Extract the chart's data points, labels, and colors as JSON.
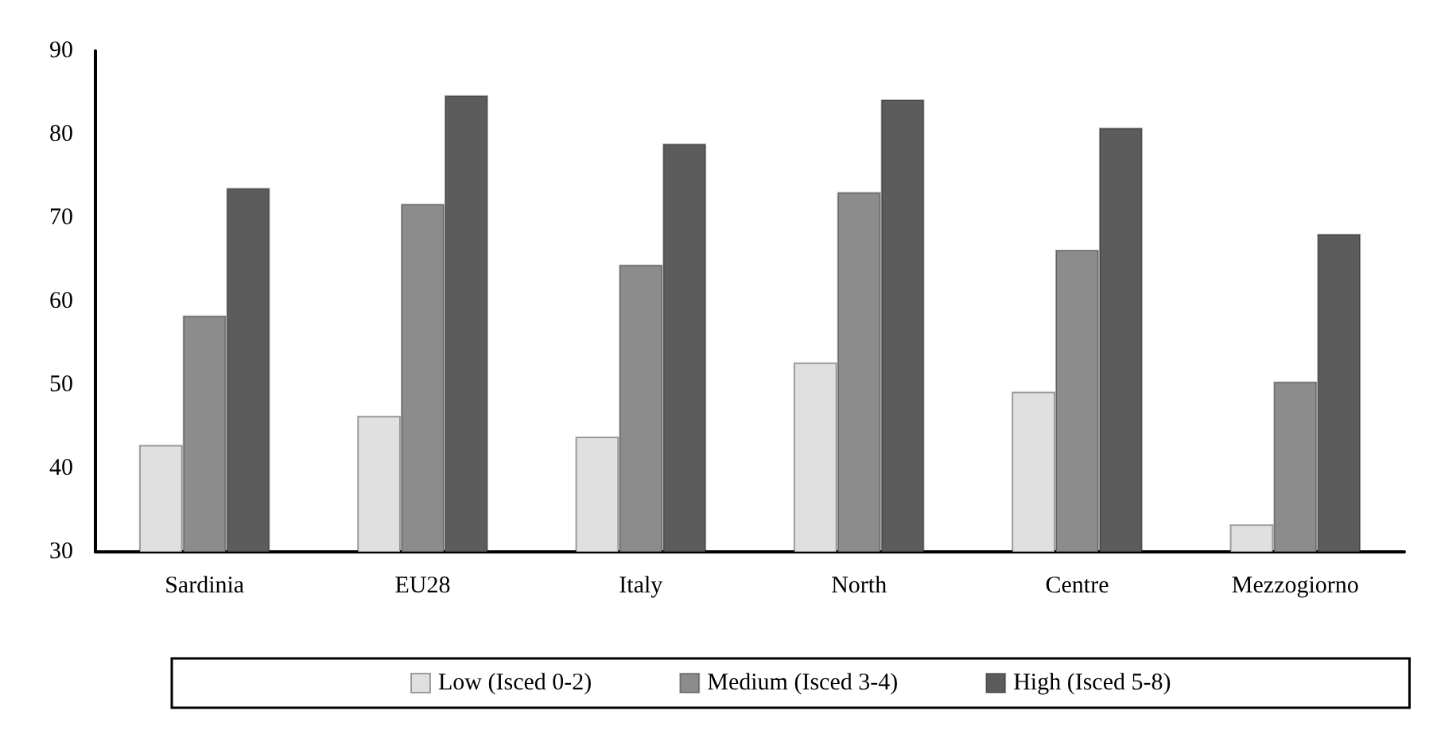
{
  "chart_data": {
    "type": "bar",
    "categories": [
      "Sardinia",
      "EU28",
      "Italy",
      "North",
      "Centre",
      "Mezzogiorno"
    ],
    "series": [
      {
        "name": "Low (Isced 0-2)",
        "color": "#e0e0e0",
        "values": [
          42.8,
          46.3,
          43.8,
          52.7,
          49.2,
          33.3
        ]
      },
      {
        "name": "Medium (Isced 3-4)",
        "color": "#8c8c8c",
        "values": [
          58.3,
          71.7,
          64.4,
          73.1,
          66.2,
          50.4
        ]
      },
      {
        "name": "High (Isced 5-8)",
        "color": "#5c5c5c",
        "values": [
          73.6,
          84.7,
          78.9,
          84.2,
          80.8,
          68.1
        ]
      }
    ],
    "ylim": [
      30,
      90
    ],
    "yticks": [
      30,
      40,
      50,
      60,
      70,
      80,
      90
    ],
    "grid": false,
    "legend": "bottom"
  }
}
